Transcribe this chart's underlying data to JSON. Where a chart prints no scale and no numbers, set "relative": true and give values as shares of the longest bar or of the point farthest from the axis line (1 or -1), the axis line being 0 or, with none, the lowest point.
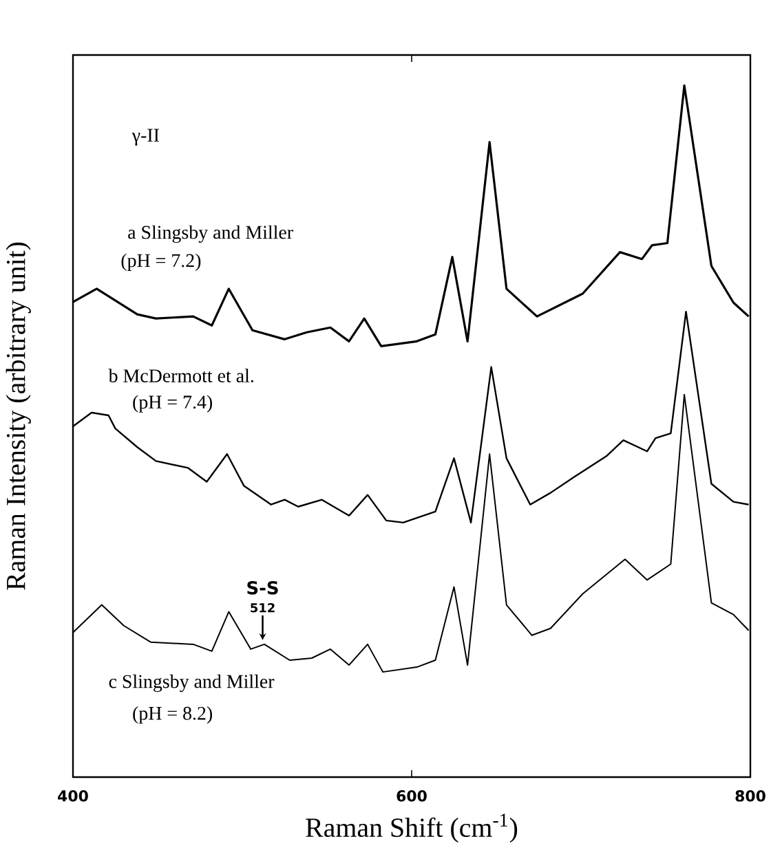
{
  "chart_data": {
    "type": "line",
    "relative": true,
    "xlabel": "Raman Shift (cm$^{-1}$)",
    "ylabel": "Raman Intensity (arbitrary unit)",
    "xlim": [
      400,
      800
    ],
    "xticks": [
      400,
      600,
      800
    ],
    "series": [
      {
        "name": "a Slingsby and Miller",
        "color": "#000000",
        "x": [
          400,
          414,
          438,
          449,
          471,
          482,
          492,
          506,
          525,
          538,
          552,
          563,
          572,
          582,
          603,
          614,
          624,
          633,
          646,
          656,
          674,
          701,
          723,
          736,
          742,
          751,
          761,
          777,
          790,
          799
        ],
        "values": [
          0.687,
          0.706,
          0.669,
          0.663,
          0.666,
          0.653,
          0.706,
          0.646,
          0.633,
          0.643,
          0.65,
          0.63,
          0.663,
          0.623,
          0.63,
          0.64,
          0.752,
          0.63,
          0.918,
          0.706,
          0.666,
          0.699,
          0.759,
          0.749,
          0.769,
          0.772,
          1.0,
          0.739,
          0.686,
          0.666
        ]
      },
      {
        "name": "b McDermott et al.",
        "color": "#000000",
        "x": [
          400,
          411,
          421,
          425,
          438,
          449,
          468,
          479,
          491,
          501,
          517,
          525,
          533,
          547,
          563,
          574,
          585,
          595,
          614,
          625,
          635,
          647,
          656,
          670,
          682,
          696,
          715,
          725,
          739,
          744,
          753,
          762,
          777,
          790,
          799
        ],
        "values": [
          0.507,
          0.527,
          0.523,
          0.504,
          0.477,
          0.457,
          0.447,
          0.427,
          0.467,
          0.421,
          0.394,
          0.401,
          0.391,
          0.401,
          0.378,
          0.408,
          0.371,
          0.368,
          0.384,
          0.461,
          0.368,
          0.593,
          0.461,
          0.394,
          0.411,
          0.434,
          0.464,
          0.487,
          0.471,
          0.49,
          0.497,
          0.673,
          0.424,
          0.398,
          0.394
        ]
      },
      {
        "name": "c Slingsby and Miller",
        "color": "#000000",
        "x": [
          400,
          417,
          430,
          446,
          471,
          482,
          492,
          505,
          513,
          528,
          541,
          552,
          563,
          574,
          583,
          603,
          614,
          625,
          633,
          646,
          656,
          671,
          682,
          701,
          726,
          739,
          753,
          761,
          777,
          790,
          799
        ],
        "values": [
          0.209,
          0.249,
          0.219,
          0.195,
          0.192,
          0.182,
          0.239,
          0.185,
          0.192,
          0.169,
          0.172,
          0.185,
          0.162,
          0.192,
          0.152,
          0.159,
          0.169,
          0.275,
          0.162,
          0.467,
          0.249,
          0.205,
          0.215,
          0.265,
          0.315,
          0.285,
          0.308,
          0.553,
          0.252,
          0.235,
          0.212
        ]
      }
    ],
    "annotations": [
      "γ-II",
      "(pH = 7.2)",
      "(pH = 7.4)",
      "(pH = 8.2)",
      {
        "text": "S-S",
        "x": 512,
        "y": 0.192
      },
      {
        "text": "512",
        "x": 512,
        "y": 0.192
      }
    ]
  }
}
